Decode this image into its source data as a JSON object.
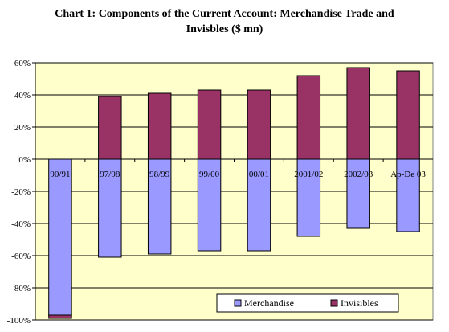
{
  "chart_data": {
    "type": "bar",
    "stacked": true,
    "title_line1": "Chart 1: Components of the Current Account: Merchandise Trade and",
    "title_line2": "Invisbles ($ mn)",
    "categories": [
      "90/91",
      "97/98",
      "98/99",
      "99/00",
      "00/01",
      "2001/02",
      "2002/03",
      "Ap-De 03"
    ],
    "series": [
      {
        "name": "Merchandise",
        "values": [
          -97,
          -61,
          -59,
          -57,
          -57,
          -48,
          -43,
          -45
        ]
      },
      {
        "name": "Invisibles",
        "values": [
          -2,
          39,
          41,
          43,
          43,
          52,
          57,
          55
        ]
      }
    ],
    "yticks": [
      "60%",
      "40%",
      "20%",
      "0%",
      "-20%",
      "-40%",
      "-60%",
      "-80%",
      "-100%"
    ],
    "ylim": [
      -100,
      60
    ],
    "gridlines": true,
    "legend_position": "bottom-right",
    "colors": {
      "plot_background": "#FFFFCC",
      "merchandise": "#9999FF",
      "invisibles": "#993366",
      "gridline": "#000000"
    }
  }
}
